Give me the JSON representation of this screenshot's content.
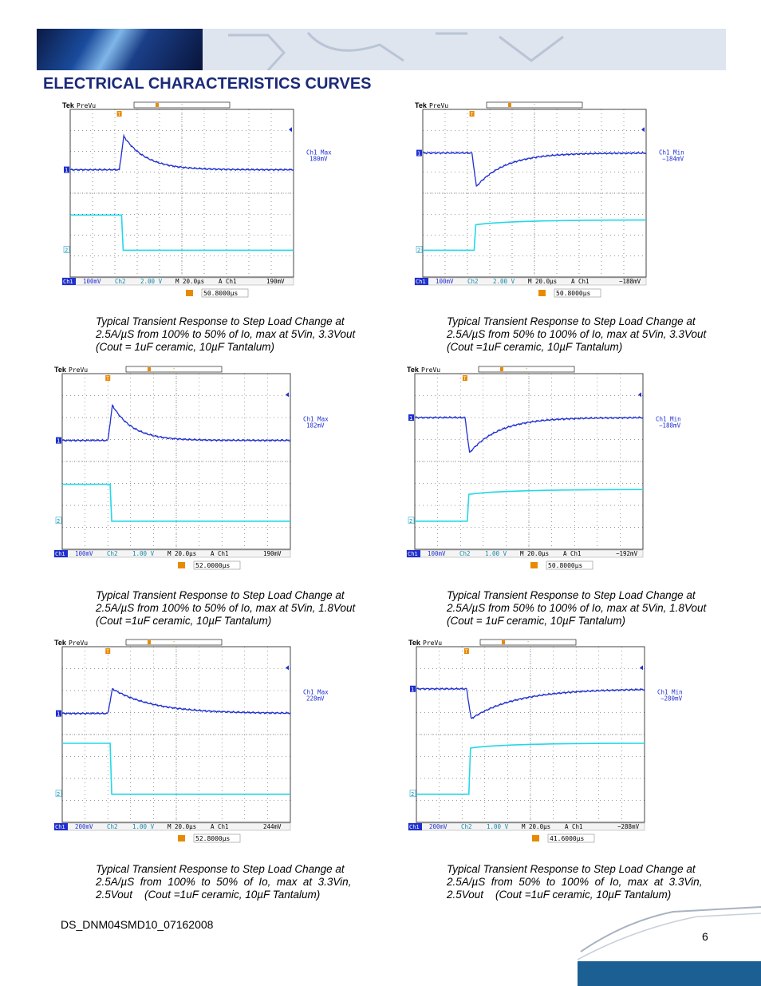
{
  "header": {
    "title": "ELECTRICAL CHARACTERISTICS CURVES"
  },
  "scope_common": {
    "brand": "Tek",
    "mode": "PreVu",
    "ch1_tag": "Ch1",
    "ch2_tag": "Ch2",
    "marker1": "1",
    "marker2": "2",
    "trigger_marker": "T",
    "timebase": "M 20.0µs",
    "trigger_source": "A  Ch1",
    "colors": {
      "ch1": "#1f2fd0",
      "ch2": "#22d8e8",
      "grid": "#333333",
      "trigger": "#e88a00"
    }
  },
  "scopes": [
    {
      "measure_label": "Ch1 Max",
      "measure_value": "180mV",
      "ch1_scale": "100mV",
      "ch2_scale": "2.00 V",
      "trigger_level": "190mV",
      "delay": "50.8000µs",
      "caption": [
        "Typical Transient Response to Step Load Change at",
        "2.5A/µS from 100% to 50% of Io, max at 5Vin, 3.3Vout",
        "(Cout = 1uF ceramic, 10µF Tantalum)"
      ]
    },
    {
      "measure_label": "Ch1 Min",
      "measure_value": "−184mV",
      "ch1_scale": "100mV",
      "ch2_scale": "2.00 V",
      "trigger_level": "−188mV",
      "delay": "50.8000µs",
      "caption": [
        "Typical Transient Response to Step Load Change at",
        "2.5A/µS from 50% to 100% of Io, max at 5Vin, 3.3Vout",
        "(Cout =1uF ceramic, 10µF Tantalum)"
      ]
    },
    {
      "measure_label": "Ch1 Max",
      "measure_value": "182mV",
      "ch1_scale": "100mV",
      "ch2_scale": "1.00 V",
      "trigger_level": "190mV",
      "delay": "52.0000µs",
      "caption": [
        "Typical Transient Response to Step Load Change at",
        "2.5A/µS from 100% to 50% of Io, max at 5Vin, 1.8Vout",
        "(Cout =1uF ceramic, 10µF Tantalum)"
      ]
    },
    {
      "measure_label": "Ch1 Min",
      "measure_value": "−188mV",
      "ch1_scale": "100mV",
      "ch2_scale": "1.00 V",
      "trigger_level": "−192mV",
      "delay": "50.8000µs",
      "caption": [
        "Typical Transient Response to Step Load Change at",
        "2.5A/µS from 50% to 100% of Io, max at 5Vin, 1.8Vout",
        "(Cout = 1uF ceramic, 10µF Tantalum)"
      ]
    },
    {
      "measure_label": "Ch1 Max",
      "measure_value": "228mV",
      "ch1_scale": "200mV",
      "ch2_scale": "1.00 V",
      "trigger_level": "244mV",
      "delay": "52.8000µs",
      "caption": [
        "Typical Transient Response to Step Load Change at",
        "2.5A/µS  from  100%  to  50%  of  Io,  max  at  3.3Vin,",
        "2.5Vout    (Cout =1uF ceramic, 10µF Tantalum)"
      ]
    },
    {
      "measure_label": "Ch1 Min",
      "measure_value": "−280mV",
      "ch1_scale": "200mV",
      "ch2_scale": "1.00 V",
      "trigger_level": "−288mV",
      "delay": "41.6000µs",
      "caption": [
        "Typical Transient Response to Step Load Change at",
        "2.5A/µS  from  50%  to  100%  of  Io,  max  at  3.3Vin,",
        "2.5Vout    (Cout =1uF ceramic, 10µF Tantalum)"
      ]
    }
  ],
  "footer": {
    "doc_id": "DS_DNM04SMD10_07162008",
    "page": "6"
  }
}
